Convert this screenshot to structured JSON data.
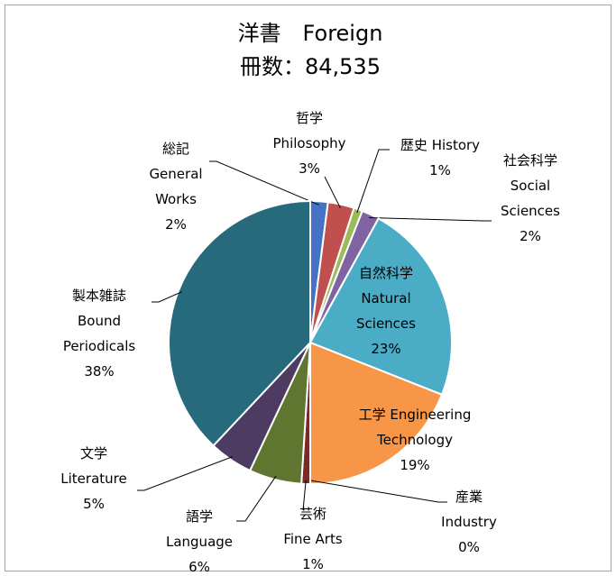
{
  "chart_data": {
    "type": "pie",
    "title": "洋書　Foreign",
    "subtitle": "冊数：84,535",
    "categories": [
      "総記\nGeneral\nWorks",
      "哲学\nPhilosophy",
      "歴史 History",
      "社会科学\nSocial\nSciences",
      "自然科学\nNatural\nSciences",
      "工学 Engineering\nTechnology",
      "産業\nIndustry",
      "芸術\nFine Arts",
      "語学\nLanguage",
      "文学\nLiterature",
      "製本雑誌\nBound\nPeriodicals"
    ],
    "values": [
      2,
      3,
      1,
      2,
      23,
      19,
      0,
      1,
      6,
      5,
      38
    ],
    "value_labels": [
      "2%",
      "3%",
      "1%",
      "2%",
      "23%",
      "19%",
      "0%",
      "1%",
      "6%",
      "5%",
      "38%"
    ],
    "colors": [
      "#4472c4",
      "#c0504d",
      "#9bbb59",
      "#8064a2",
      "#4bacc6",
      "#f79646",
      "#2c4d75",
      "#772c2a",
      "#5f7530",
      "#4d3b62",
      "#276a7c"
    ]
  }
}
